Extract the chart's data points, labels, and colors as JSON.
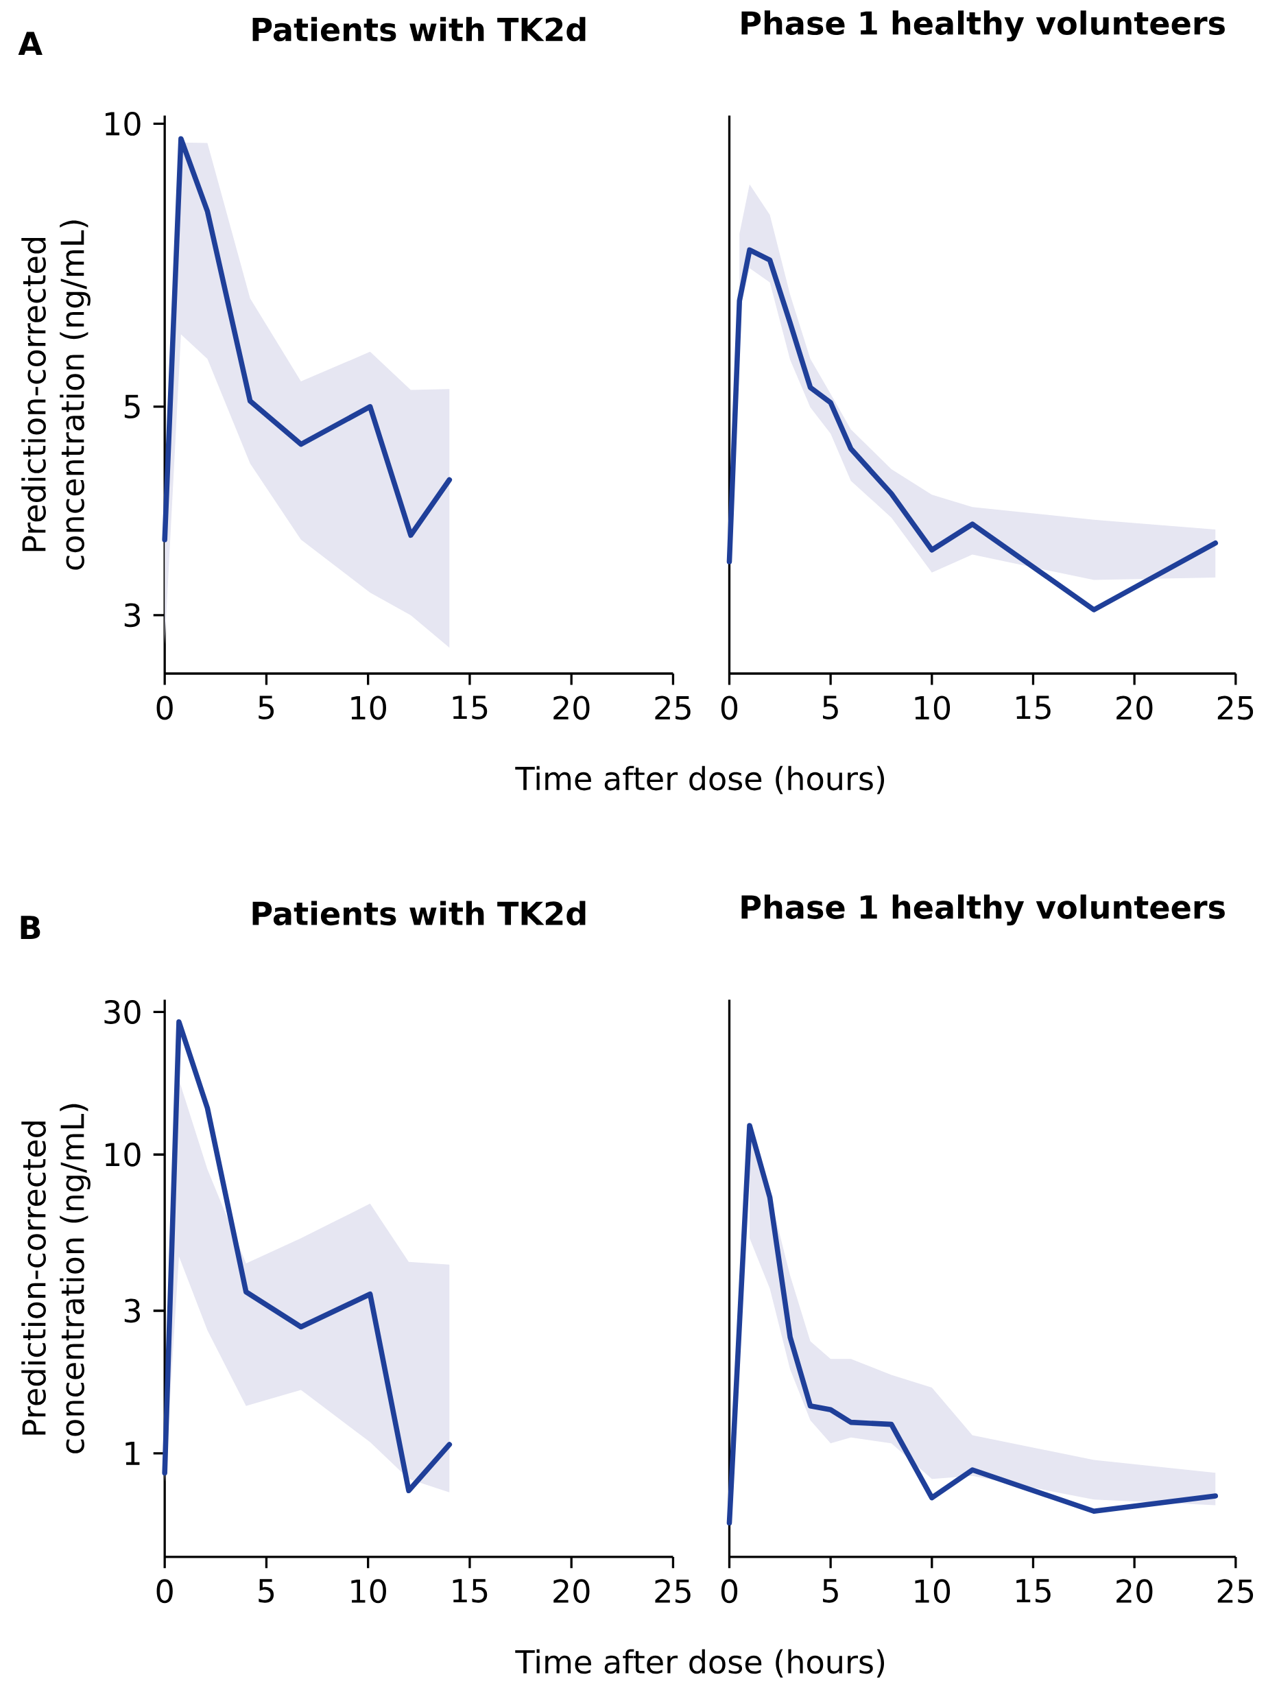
{
  "chart_data": [
    {
      "type": "line",
      "title": "Patients with TK2d",
      "annotations": [
        "A"
      ],
      "xlabel": "Time after dose (hours)",
      "ylabel": "Prediction-corrected concentration (ng/mL)",
      "log": true,
      "xlim": [
        0,
        25
      ],
      "xticks": [
        0,
        5,
        10,
        15,
        20,
        25
      ],
      "ylim": [
        2.6,
        10.2
      ],
      "yticks": [
        3,
        5,
        10
      ],
      "x": [
        0,
        0.8,
        2.1,
        4.2,
        6.7,
        10.1,
        12.1,
        14
      ],
      "series": [
        {
          "color": "#1f3f99",
          "values": [
            3.61,
            9.64,
            8.07,
            5.07,
            4.56,
            5.0,
            3.65,
            4.18
          ],
          "upper": [
            3.6,
            9.55,
            9.54,
            6.52,
            5.32,
            5.72,
            5.21,
            5.22
          ],
          "lower": [
            2.79,
            5.97,
            5.62,
            4.35,
            3.61,
            3.17,
            3.0,
            2.77
          ]
        }
      ]
    },
    {
      "type": "line",
      "title": "Phase 1 healthy volunteers",
      "log": true,
      "tick_labels": "x",
      "xlim": [
        0,
        25
      ],
      "xticks": [
        0,
        5,
        10,
        15,
        20,
        25
      ],
      "ylim": [
        2.6,
        10.2
      ],
      "x": [
        0,
        0.5,
        1,
        2,
        3,
        4,
        5,
        6,
        8,
        10,
        12,
        18,
        24
      ],
      "series": [
        {
          "color": "#1f3f99",
          "values": [
            3.42,
            6.48,
            7.34,
            7.16,
            6.14,
            5.24,
            5.05,
            4.51,
            4.04,
            3.52,
            3.75,
            3.04,
            3.58
          ],
          "upper": [
            null,
            7.64,
            8.62,
            8.0,
            6.58,
            5.62,
            5.16,
            4.73,
            4.29,
            4.03,
            3.91,
            3.79,
            3.7
          ],
          "lower": [
            null,
            6.3,
            7.02,
            6.78,
            5.61,
            4.99,
            4.68,
            4.17,
            3.81,
            3.33,
            3.48,
            3.27,
            3.29
          ]
        }
      ]
    },
    {
      "type": "line",
      "title": "Patients with TK2d",
      "annotations": [
        "B"
      ],
      "xlabel": "Time after dose (hours)",
      "ylabel": "Prediction-corrected concentration (ng/mL)",
      "log": true,
      "xlim": [
        0,
        25
      ],
      "xticks": [
        0,
        5,
        10,
        15,
        20,
        25
      ],
      "ylim": [
        0.45,
        33
      ],
      "yticks": [
        1,
        3,
        10,
        30
      ],
      "x": [
        0,
        0.7,
        2.1,
        4.0,
        6.7,
        10.1,
        12,
        14
      ],
      "series": [
        {
          "color": "#1f3f99",
          "values": [
            0.86,
            27.8,
            14.3,
            3.47,
            2.65,
            3.41,
            0.75,
            1.07
          ],
          "upper": [
            0.9,
            17.8,
            8.93,
            4.32,
            5.25,
            6.85,
            4.37,
            4.28
          ],
          "lower": [
            0.8,
            4.56,
            2.58,
            1.44,
            1.63,
            1.09,
            0.82,
            0.74
          ]
        }
      ]
    },
    {
      "type": "line",
      "title": "Phase 1 healthy volunteers",
      "log": true,
      "tick_labels": "x",
      "xlim": [
        0,
        25
      ],
      "xticks": [
        0,
        5,
        10,
        15,
        20,
        25
      ],
      "ylim": [
        0.45,
        33
      ],
      "x": [
        0,
        1,
        2,
        3,
        4,
        5,
        6,
        8,
        10,
        12,
        18,
        24
      ],
      "series": [
        {
          "color": "#1f3f99",
          "values": [
            0.585,
            12.5,
            7.19,
            2.45,
            1.44,
            1.4,
            1.27,
            1.25,
            0.71,
            0.88,
            0.64,
            0.72
          ],
          "upper": [
            null,
            12.0,
            7.3,
            3.94,
            2.37,
            2.07,
            2.07,
            1.83,
            1.66,
            1.15,
            0.95,
            0.86
          ],
          "lower": [
            null,
            5.25,
            3.56,
            1.91,
            1.29,
            1.08,
            1.13,
            1.08,
            0.82,
            0.84,
            0.7,
            0.67
          ]
        }
      ]
    }
  ]
}
